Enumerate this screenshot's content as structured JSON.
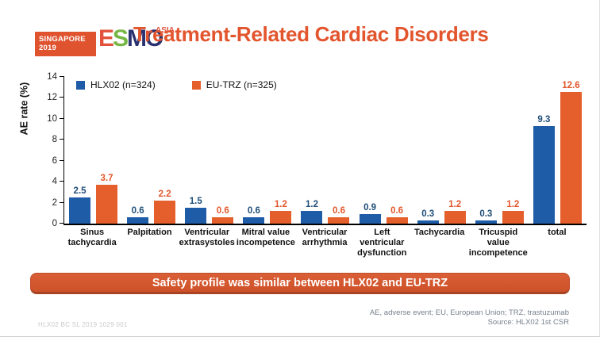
{
  "logo": {
    "venue": "SINGAPORE",
    "year": "2019",
    "letter_e": "E",
    "letter_s": "S",
    "letter_m": "M",
    "letter_o": "O",
    "suffix": "ASIA"
  },
  "header": {
    "title": "Treatment-Related Cardiac Disorders"
  },
  "chart_data": {
    "type": "bar",
    "title": "",
    "ylabel": "AE rate (%)",
    "xlabel": "",
    "ylim": [
      0,
      14
    ],
    "yticks": [
      0,
      2,
      4,
      6,
      8,
      10,
      12,
      14
    ],
    "grid": false,
    "legend_position": "top-left",
    "categories": [
      "Sinus tachycardia",
      "Palpitation",
      "Ventricular extrasystoles",
      "Mitral value incompetence",
      "Ventricular arrhythmia",
      "Left ventricular dysfunction",
      "Tachycardia",
      "Tricuspid value incompetence",
      "total"
    ],
    "series": [
      {
        "name": "HLX02 (n=324)",
        "color": "#1E5CA8",
        "label_color": "#1F4E79",
        "values": [
          2.5,
          0.6,
          1.5,
          0.6,
          1.2,
          0.9,
          0.3,
          0.3,
          9.3
        ]
      },
      {
        "name": "EU-TRZ (n=325)",
        "color": "#E45F2B",
        "label_color": "#E2572B",
        "values": [
          3.7,
          2.2,
          0.6,
          1.2,
          0.6,
          0.6,
          1.2,
          1.2,
          12.6
        ]
      }
    ]
  },
  "banner": {
    "text": "Safety profile was similar between HLX02 and EU-TRZ"
  },
  "footer": {
    "left_code": "HLX02 BC SL 2019 1029 001",
    "abbreviations": "AE, adverse event; EU, European Union; TRZ, trastuzumab",
    "source": "Source: HLX02 1st CSR"
  }
}
